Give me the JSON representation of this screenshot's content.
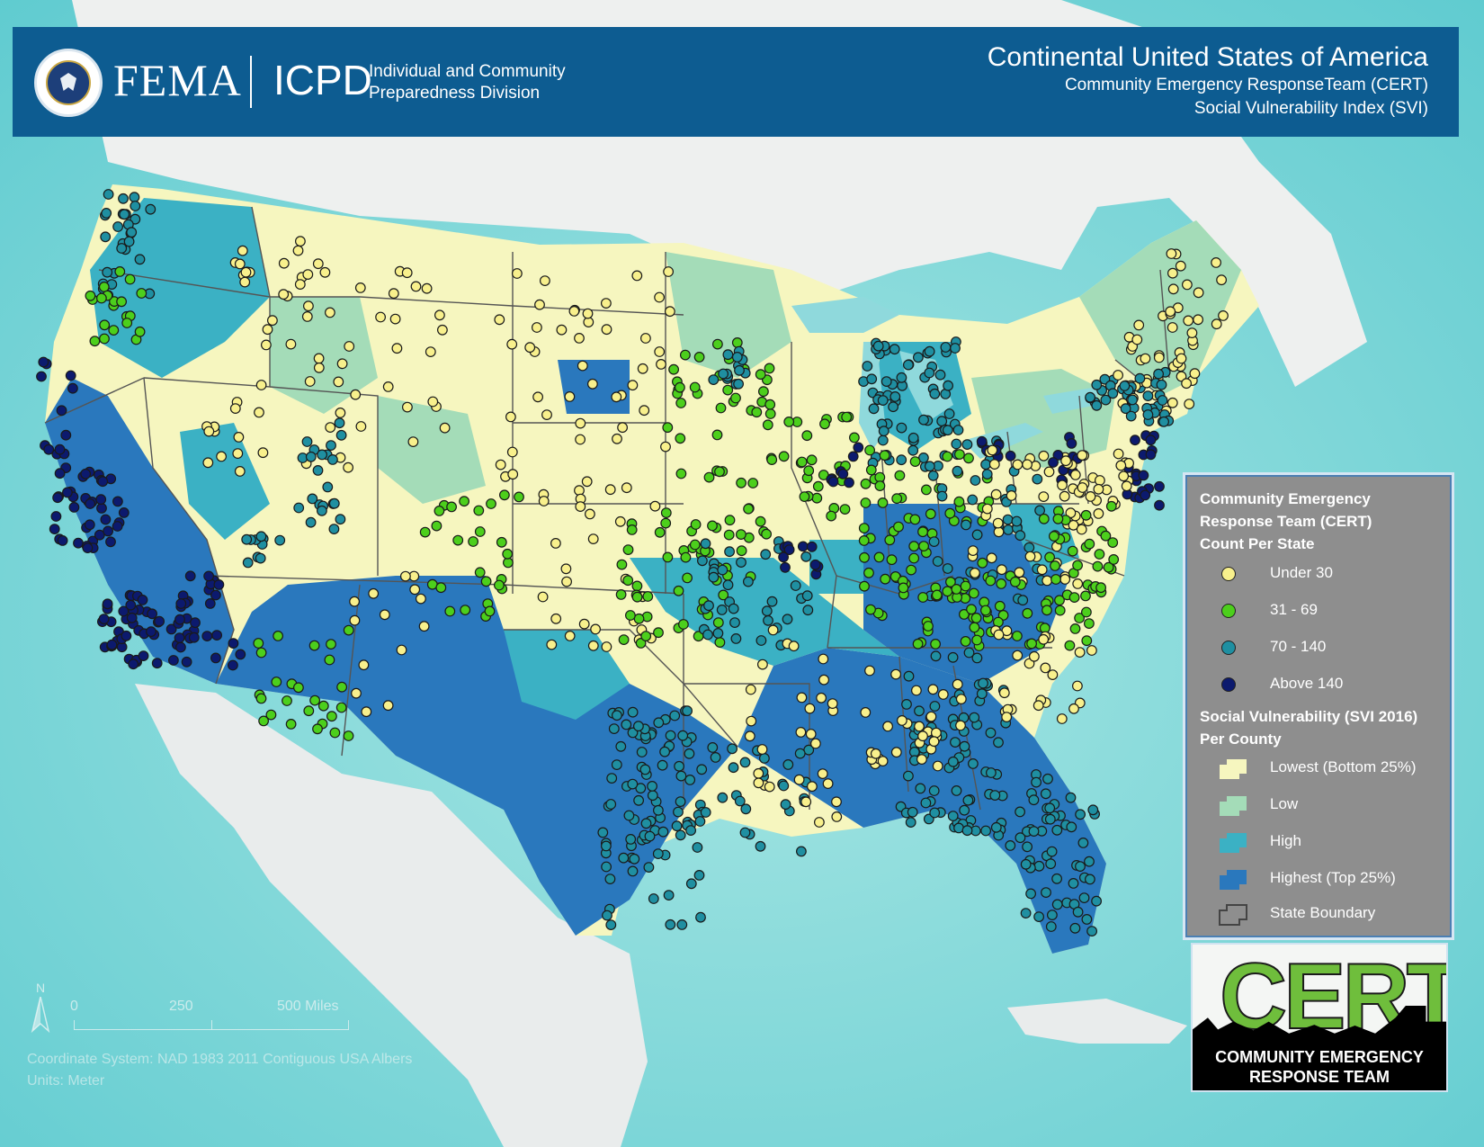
{
  "header": {
    "agency": "FEMA",
    "division_abbr": "ICPD",
    "division_line1": "Individual and Community",
    "division_line2": "Preparedness Division",
    "title": "Continental United States of America",
    "subtitle1": "Community Emergency ResponseTeam (CERT)",
    "subtitle2": "Social Vulnerability Index (SVI)"
  },
  "legend": {
    "cert_heading_1": "Community Emergency",
    "cert_heading_2": "Response Team (CERT)",
    "cert_heading_3": "Count Per State",
    "cert_classes": [
      {
        "label": "Under 30",
        "color": "#f8f08c"
      },
      {
        "label": "31 - 69",
        "color": "#4ccf1c"
      },
      {
        "label": "70 - 140",
        "color": "#1f8fa1"
      },
      {
        "label": "Above 140",
        "color": "#0c1a6e"
      }
    ],
    "svi_heading_1": "Social Vulnerability (SVI 2016)",
    "svi_heading_2": "Per County",
    "svi_classes": [
      {
        "label": "Lowest (Bottom 25%)",
        "color": "#f6f6bf"
      },
      {
        "label": "Low",
        "color": "#a4dcb8"
      },
      {
        "label": "High",
        "color": "#3bb1c4"
      },
      {
        "label": "Highest (Top 25%)",
        "color": "#2a78bd"
      }
    ],
    "state_boundary_label": "State Boundary"
  },
  "logo": {
    "word": "CERT",
    "line1": "COMMUNITY EMERGENCY",
    "line2": "RESPONSE TEAM"
  },
  "map_footer": {
    "north": "N",
    "scale_0": "0",
    "scale_250": "250",
    "scale_500": "500 Miles",
    "coordinate_system": "Coordinate System: NAD 1983 2011 Contiguous USA Albers",
    "units": "Units: Meter"
  },
  "colors": {
    "header_blue": "#0d5c91",
    "ocean": "#7fd6d6",
    "land_gray": "#e9ecec"
  }
}
